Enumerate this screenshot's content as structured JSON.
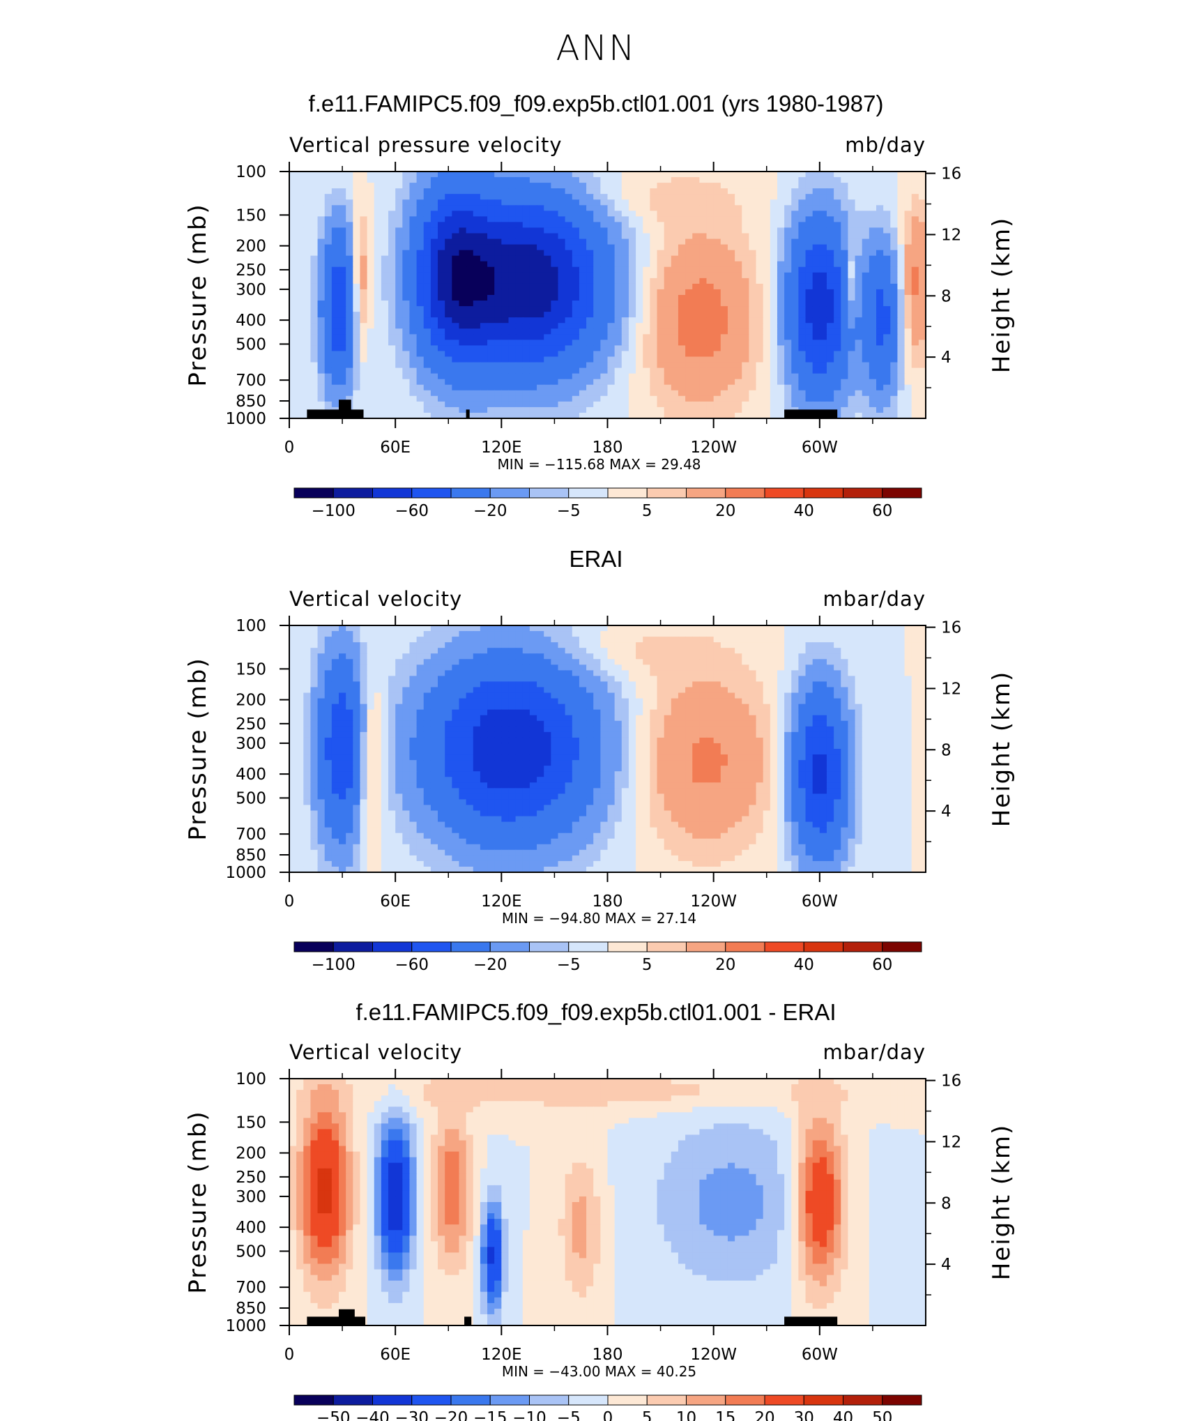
{
  "page": {
    "main_title": "ANN"
  },
  "chart_data": [
    {
      "type": "heatmap",
      "title": "f.e11.FAMIPC5.f09_f09.exp5b.ctl01.001 (yrs 1980-1987)",
      "subtitle_left": "Vertical pressure velocity",
      "subtitle_right": "mb/day",
      "ylabel": "Pressure (mb)",
      "ylabel_right": "Height (km)",
      "x_ticks": [
        "0",
        "60E",
        "120E",
        "180",
        "120W",
        "60W"
      ],
      "y_ticks": [
        "100",
        "150",
        "200",
        "250",
        "300",
        "400",
        "500",
        "700",
        "850",
        "1000"
      ],
      "y_ticks_right": [
        "16",
        "12",
        "8",
        "4"
      ],
      "stats": "MIN = −115.68   MAX =  29.48",
      "colorbar_labels": [
        "−100",
        "−60",
        "−20",
        "−5",
        "5",
        "20",
        "40",
        "60"
      ],
      "colorbar_colors": [
        "#08005a",
        "#0d1c9e",
        "#1236d6",
        "#1f55f0",
        "#3a78ee",
        "#6b9af3",
        "#a9c3f5",
        "#d6e6fb",
        "#fde8d5",
        "#fbcbb0",
        "#f6a582",
        "#f27c54",
        "#ee4a25",
        "#d8350f",
        "#b3200a",
        "#7c0400"
      ],
      "ylim": [
        1000,
        100
      ],
      "xlim": [
        0,
        360
      ],
      "x_units": "degrees longitude",
      "y_scale": "log",
      "min": -115.68,
      "max": 29.48
    },
    {
      "type": "heatmap",
      "title": "ERAI",
      "subtitle_left": "Vertical velocity",
      "subtitle_right": "mbar/day",
      "ylabel": "Pressure (mb)",
      "ylabel_right": "Height (km)",
      "x_ticks": [
        "0",
        "60E",
        "120E",
        "180",
        "120W",
        "60W"
      ],
      "y_ticks": [
        "100",
        "150",
        "200",
        "250",
        "300",
        "400",
        "500",
        "700",
        "850",
        "1000"
      ],
      "y_ticks_right": [
        "16",
        "12",
        "8",
        "4"
      ],
      "stats": "MIN = −94.80   MAX =  27.14",
      "colorbar_labels": [
        "−100",
        "−60",
        "−20",
        "−5",
        "5",
        "20",
        "40",
        "60"
      ],
      "colorbar_colors": [
        "#08005a",
        "#0d1c9e",
        "#1236d6",
        "#1f55f0",
        "#3a78ee",
        "#6b9af3",
        "#a9c3f5",
        "#d6e6fb",
        "#fde8d5",
        "#fbcbb0",
        "#f6a582",
        "#f27c54",
        "#ee4a25",
        "#d8350f",
        "#b3200a",
        "#7c0400"
      ],
      "ylim": [
        1000,
        100
      ],
      "xlim": [
        0,
        360
      ],
      "x_units": "degrees longitude",
      "y_scale": "log",
      "min": -94.8,
      "max": 27.14
    },
    {
      "type": "heatmap",
      "title": "f.e11.FAMIPC5.f09_f09.exp5b.ctl01.001 - ERAI",
      "subtitle_left": "Vertical velocity",
      "subtitle_right": "mbar/day",
      "ylabel": "Pressure (mb)",
      "ylabel_right": "Height (km)",
      "x_ticks": [
        "0",
        "60E",
        "120E",
        "180",
        "120W",
        "60W"
      ],
      "y_ticks": [
        "100",
        "150",
        "200",
        "250",
        "300",
        "400",
        "500",
        "700",
        "850",
        "1000"
      ],
      "y_ticks_right": [
        "16",
        "12",
        "8",
        "4"
      ],
      "stats": "MIN = −43.00   MAX =  40.25",
      "colorbar_labels": [
        "−50",
        "−40",
        "−30",
        "−20",
        "−15",
        "−10",
        "−5",
        "0",
        "5",
        "10",
        "15",
        "20",
        "30",
        "40",
        "50"
      ],
      "colorbar_colors": [
        "#08005a",
        "#0d1c9e",
        "#1236d6",
        "#1f55f0",
        "#3a78ee",
        "#6b9af3",
        "#a9c3f5",
        "#d6e6fb",
        "#fde8d5",
        "#fbcbb0",
        "#f6a582",
        "#f27c54",
        "#ee4a25",
        "#d8350f",
        "#b3200a",
        "#7c0400"
      ],
      "ylim": [
        1000,
        100
      ],
      "xlim": [
        0,
        360
      ],
      "x_units": "degrees longitude",
      "y_scale": "log",
      "min": -43.0,
      "max": 40.25
    }
  ]
}
